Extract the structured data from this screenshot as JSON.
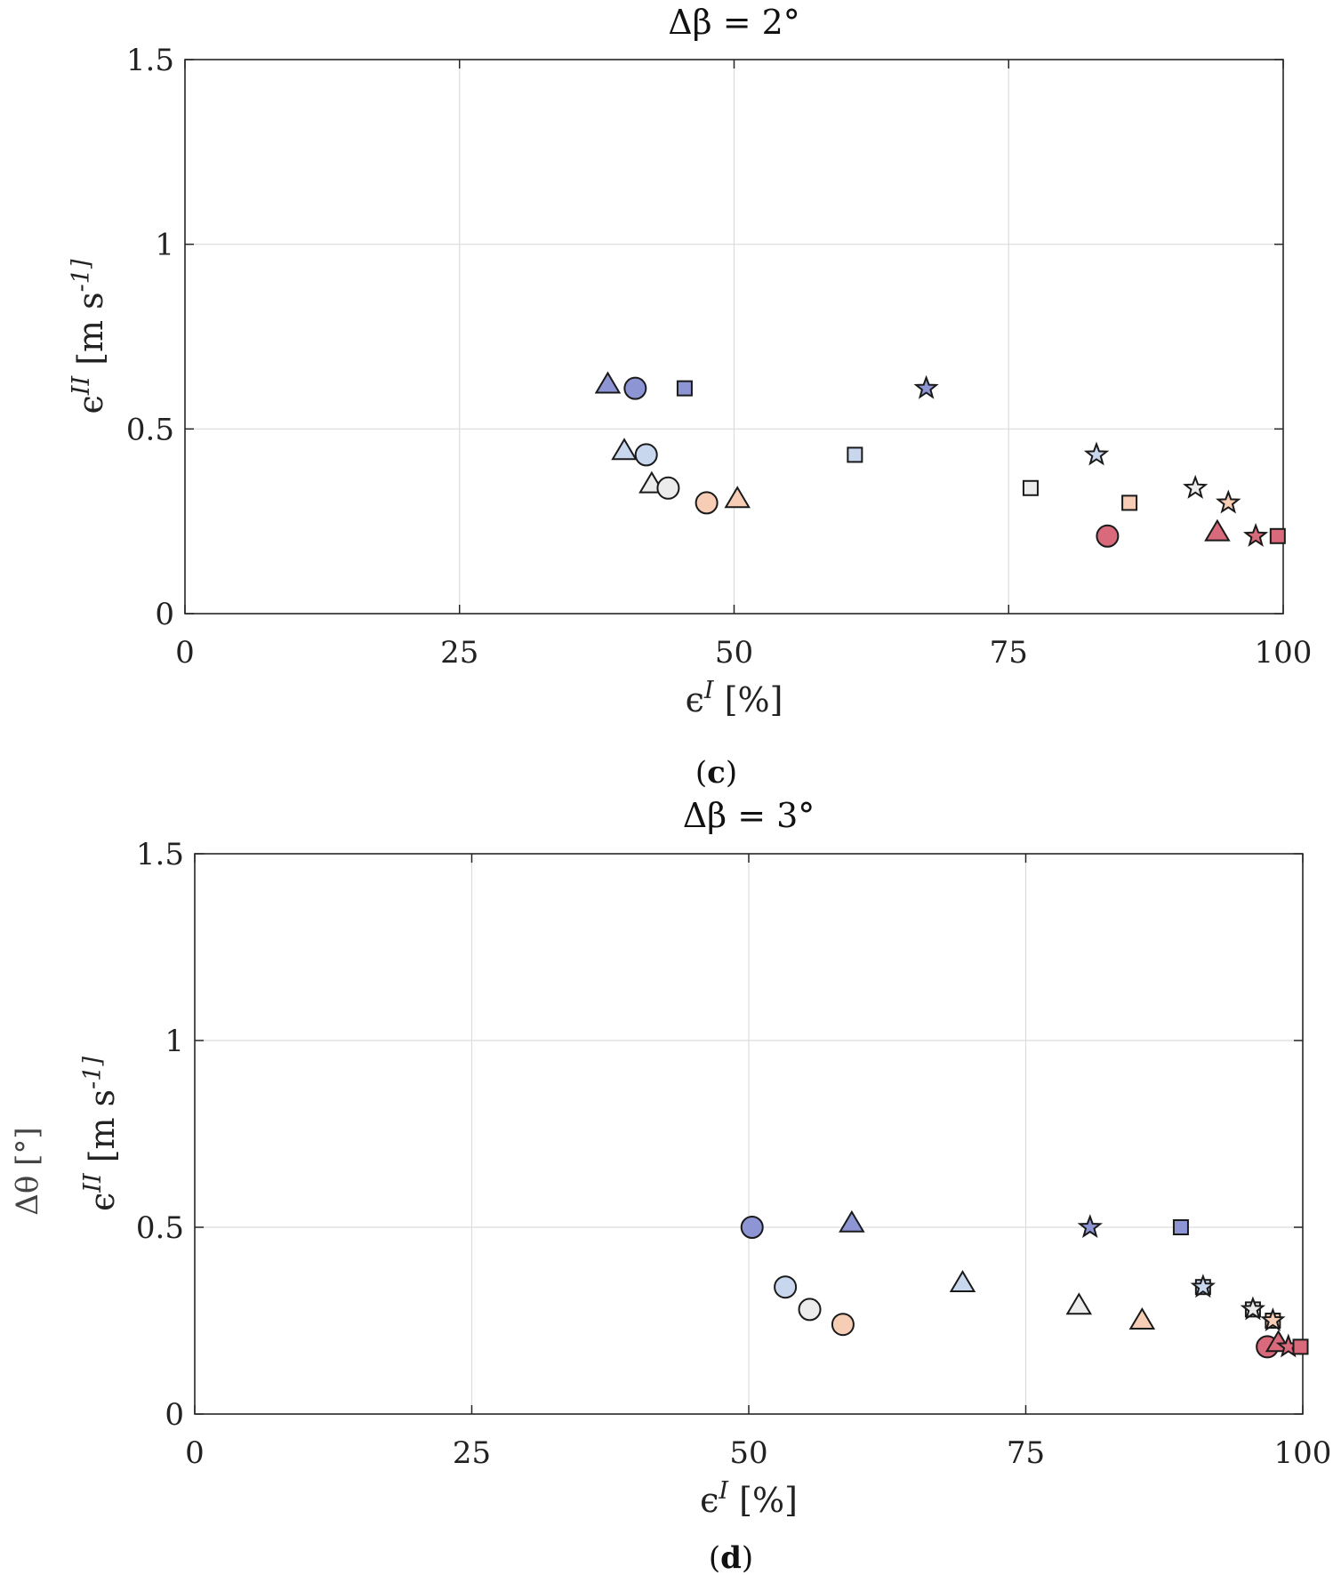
{
  "chart_data": [
    {
      "type": "scatter",
      "panel": "c",
      "title": "Δβ = 2°",
      "xlabel": "ϵ^I [%]",
      "ylabel": "ϵ^II [m s^-1]",
      "xlim": [
        0,
        100
      ],
      "ylim": [
        0,
        1.5
      ],
      "xticks": [
        0,
        25,
        50,
        75,
        100
      ],
      "yticks": [
        0,
        0.5,
        1,
        1.5
      ],
      "xtick_labels": [
        "0",
        "25",
        "50",
        "75",
        "100"
      ],
      "ytick_labels": [
        "0",
        "0.5",
        "1",
        "1.5"
      ],
      "grid": true,
      "caption": "(c)",
      "points": [
        {
          "x": 38.5,
          "y": 0.62,
          "marker": "triangle",
          "color": "#8e95d4"
        },
        {
          "x": 41.0,
          "y": 0.61,
          "marker": "circle",
          "color": "#8e95d4"
        },
        {
          "x": 45.5,
          "y": 0.61,
          "marker": "square",
          "color": "#8e95d4"
        },
        {
          "x": 67.5,
          "y": 0.61,
          "marker": "star",
          "color": "#8e95d4"
        },
        {
          "x": 40.0,
          "y": 0.44,
          "marker": "triangle",
          "color": "#c8d6ee"
        },
        {
          "x": 42.0,
          "y": 0.43,
          "marker": "circle",
          "color": "#c8d6ee"
        },
        {
          "x": 61.0,
          "y": 0.43,
          "marker": "square",
          "color": "#c8d6ee"
        },
        {
          "x": 83.0,
          "y": 0.43,
          "marker": "star",
          "color": "#c8d6ee"
        },
        {
          "x": 42.5,
          "y": 0.35,
          "marker": "triangle",
          "color": "#ececec"
        },
        {
          "x": 44.0,
          "y": 0.34,
          "marker": "circle",
          "color": "#ececec"
        },
        {
          "x": 77.0,
          "y": 0.34,
          "marker": "square",
          "color": "#ececec"
        },
        {
          "x": 92.0,
          "y": 0.34,
          "marker": "star",
          "color": "#ececec"
        },
        {
          "x": 47.5,
          "y": 0.3,
          "marker": "circle",
          "color": "#f7cdb6"
        },
        {
          "x": 50.3,
          "y": 0.31,
          "marker": "triangle",
          "color": "#f7cdb6"
        },
        {
          "x": 86.0,
          "y": 0.3,
          "marker": "square",
          "color": "#f7cdb6"
        },
        {
          "x": 95.0,
          "y": 0.3,
          "marker": "star",
          "color": "#f7cdb6"
        },
        {
          "x": 84.0,
          "y": 0.21,
          "marker": "circle",
          "color": "#d96a7b"
        },
        {
          "x": 94.0,
          "y": 0.22,
          "marker": "triangle",
          "color": "#d96a7b"
        },
        {
          "x": 97.5,
          "y": 0.21,
          "marker": "star",
          "color": "#d96a7b"
        },
        {
          "x": 99.5,
          "y": 0.21,
          "marker": "square",
          "color": "#d96a7b"
        }
      ]
    },
    {
      "type": "scatter",
      "panel": "d",
      "title": "Δβ = 3°",
      "xlabel": "ϵ^I [%]",
      "ylabel": "ϵ^II [m s^-1]",
      "overlay_ylabel": "Δθ [°]",
      "xlim": [
        0,
        100
      ],
      "ylim": [
        0,
        1.5
      ],
      "xticks": [
        0,
        25,
        50,
        75,
        100
      ],
      "yticks": [
        0,
        0.5,
        1,
        1.5
      ],
      "xtick_labels": [
        "0",
        "25",
        "50",
        "75",
        "100"
      ],
      "ytick_labels": [
        "0",
        "0.5",
        "1",
        "1.5"
      ],
      "grid": true,
      "caption": "(d)",
      "points": [
        {
          "x": 50.3,
          "y": 0.5,
          "marker": "circle",
          "color": "#8e95d4"
        },
        {
          "x": 59.3,
          "y": 0.51,
          "marker": "triangle",
          "color": "#8e95d4"
        },
        {
          "x": 80.8,
          "y": 0.5,
          "marker": "star",
          "color": "#8e95d4"
        },
        {
          "x": 89.0,
          "y": 0.5,
          "marker": "square",
          "color": "#8e95d4"
        },
        {
          "x": 53.3,
          "y": 0.34,
          "marker": "circle",
          "color": "#c8d6ee"
        },
        {
          "x": 69.3,
          "y": 0.35,
          "marker": "triangle",
          "color": "#c8d6ee"
        },
        {
          "x": 91.0,
          "y": 0.34,
          "marker": "square",
          "color": "#c8d6ee"
        },
        {
          "x": 91.0,
          "y": 0.34,
          "marker": "star",
          "color": "#c8d6ee"
        },
        {
          "x": 55.5,
          "y": 0.28,
          "marker": "circle",
          "color": "#ececec"
        },
        {
          "x": 79.8,
          "y": 0.29,
          "marker": "triangle",
          "color": "#ececec"
        },
        {
          "x": 95.5,
          "y": 0.28,
          "marker": "square",
          "color": "#ececec"
        },
        {
          "x": 95.5,
          "y": 0.28,
          "marker": "star",
          "color": "#ececec"
        },
        {
          "x": 58.5,
          "y": 0.24,
          "marker": "circle",
          "color": "#f7cdb6"
        },
        {
          "x": 85.5,
          "y": 0.25,
          "marker": "triangle",
          "color": "#f7cdb6"
        },
        {
          "x": 97.3,
          "y": 0.25,
          "marker": "square",
          "color": "#f7cdb6"
        },
        {
          "x": 97.3,
          "y": 0.25,
          "marker": "star",
          "color": "#f7cdb6"
        },
        {
          "x": 96.8,
          "y": 0.18,
          "marker": "circle",
          "color": "#d96a7b"
        },
        {
          "x": 97.8,
          "y": 0.19,
          "marker": "triangle",
          "color": "#d96a7b"
        },
        {
          "x": 98.7,
          "y": 0.18,
          "marker": "star",
          "color": "#d96a7b"
        },
        {
          "x": 99.8,
          "y": 0.18,
          "marker": "square",
          "color": "#d96a7b"
        }
      ]
    }
  ]
}
